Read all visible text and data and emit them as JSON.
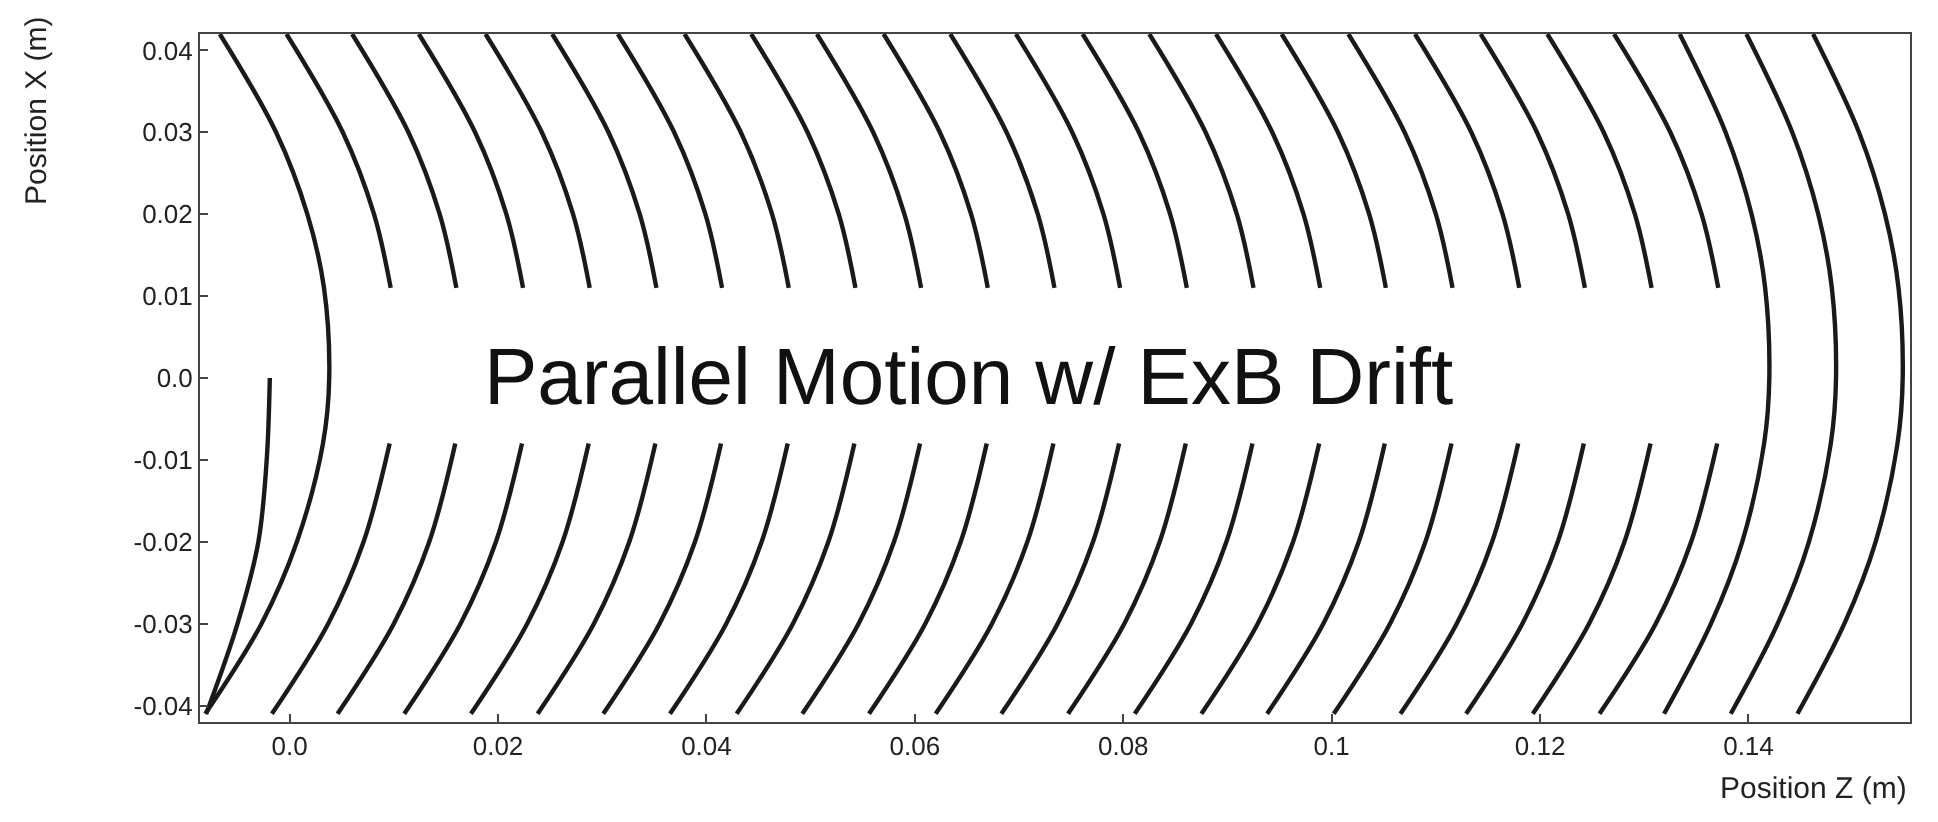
{
  "chart_data": {
    "type": "line",
    "xlabel": "Position Z (m)",
    "ylabel": "Position X (m)",
    "annotations": [
      "Parallel Motion w/ ExB Drift"
    ],
    "xlim": [
      -0.0086,
      0.1555
    ],
    "ylim": [
      -0.042,
      0.042
    ],
    "xticks": [
      {
        "value": 0,
        "label": "0.0"
      },
      0.02,
      0.04,
      0.06,
      0.08,
      {
        "value": 0.1,
        "label": "0.1"
      },
      0.12,
      0.14
    ],
    "yticks": [
      -0.04,
      -0.03,
      -0.02,
      -0.01,
      {
        "value": 0,
        "label": "0.0"
      },
      0.01,
      0.02,
      0.03,
      0.04
    ],
    "marker": "none",
    "line_style": "solid",
    "series": [
      {
        "color": "#1a1a1a",
        "x": [
          -0.0067,
          -0.0013,
          0.0017,
          0.0033,
          0.0038,
          0.0032,
          0.0007,
          -0.0027,
          -0.0081
        ],
        "values": [
          0.042,
          0.03,
          0.02,
          0.011,
          0,
          -0.008,
          -0.02,
          -0.03,
          -0.041
        ]
      },
      {
        "color": "#1a1a1a",
        "x": [
          -0.0019,
          -0.0022,
          -0.003,
          -0.005,
          -0.008
        ],
        "values": [
          0,
          -0.01,
          -0.02,
          -0.03,
          -0.041
        ]
      },
      {
        "color": "#1a1a1a",
        "x": [
          -0.0003,
          0.0051,
          0.0081,
          0.0097,
          null,
          0.0096,
          0.0071,
          0.0037,
          -0.0017
        ],
        "values": [
          0.042,
          0.03,
          0.02,
          0.011,
          null,
          -0.008,
          -0.02,
          -0.03,
          -0.041
        ]
      },
      {
        "color": "#1a1a1a",
        "x": [
          0.006,
          0.0114,
          0.0144,
          0.016,
          null,
          0.0159,
          0.0134,
          0.01,
          0.0046
        ],
        "values": [
          0.042,
          0.03,
          0.02,
          0.011,
          null,
          -0.008,
          -0.02,
          -0.03,
          -0.041
        ]
      },
      {
        "color": "#1a1a1a",
        "x": [
          0.0124,
          0.0178,
          0.0208,
          0.0224,
          null,
          0.0223,
          0.0198,
          0.0164,
          0.011
        ],
        "values": [
          0.042,
          0.03,
          0.02,
          0.011,
          null,
          -0.008,
          -0.02,
          -0.03,
          -0.041
        ]
      },
      {
        "color": "#1a1a1a",
        "x": [
          0.0188,
          0.0242,
          0.0272,
          0.0288,
          null,
          0.0287,
          0.0262,
          0.0228,
          0.0174
        ],
        "values": [
          0.042,
          0.03,
          0.02,
          0.011,
          null,
          -0.008,
          -0.02,
          -0.03,
          -0.041
        ]
      },
      {
        "color": "#1a1a1a",
        "x": [
          0.0252,
          0.0306,
          0.0336,
          0.0352,
          null,
          0.0351,
          0.0326,
          0.0292,
          0.0238
        ],
        "values": [
          0.042,
          0.03,
          0.02,
          0.011,
          null,
          -0.008,
          -0.02,
          -0.03,
          -0.041
        ]
      },
      {
        "color": "#1a1a1a",
        "x": [
          0.0315,
          0.0369,
          0.0399,
          0.0415,
          null,
          0.0414,
          0.0389,
          0.0355,
          0.0301
        ],
        "values": [
          0.042,
          0.03,
          0.02,
          0.011,
          null,
          -0.008,
          -0.02,
          -0.03,
          -0.041
        ]
      },
      {
        "color": "#1a1a1a",
        "x": [
          0.0379,
          0.0433,
          0.0463,
          0.0479,
          null,
          0.0478,
          0.0453,
          0.0419,
          0.0365
        ],
        "values": [
          0.042,
          0.03,
          0.02,
          0.011,
          null,
          -0.008,
          -0.02,
          -0.03,
          -0.041
        ]
      },
      {
        "color": "#1a1a1a",
        "x": [
          0.0443,
          0.0497,
          0.0527,
          0.0543,
          null,
          0.0542,
          0.0517,
          0.0483,
          0.0429
        ],
        "values": [
          0.042,
          0.03,
          0.02,
          0.011,
          null,
          -0.008,
          -0.02,
          -0.03,
          -0.041
        ]
      },
      {
        "color": "#1a1a1a",
        "x": [
          0.0506,
          0.056,
          0.059,
          0.0606,
          null,
          0.0605,
          0.058,
          0.0546,
          0.0492
        ],
        "values": [
          0.042,
          0.03,
          0.02,
          0.011,
          null,
          -0.008,
          -0.02,
          -0.03,
          -0.041
        ]
      },
      {
        "color": "#1a1a1a",
        "x": [
          0.057,
          0.0624,
          0.0654,
          0.067,
          null,
          0.0669,
          0.0644,
          0.061,
          0.0556
        ],
        "values": [
          0.042,
          0.03,
          0.02,
          0.011,
          null,
          -0.008,
          -0.02,
          -0.03,
          -0.041
        ]
      },
      {
        "color": "#1a1a1a",
        "x": [
          0.0634,
          0.0688,
          0.0718,
          0.0734,
          null,
          0.0733,
          0.0708,
          0.0674,
          0.062
        ],
        "values": [
          0.042,
          0.03,
          0.02,
          0.011,
          null,
          -0.008,
          -0.02,
          -0.03,
          -0.041
        ]
      },
      {
        "color": "#1a1a1a",
        "x": [
          0.0697,
          0.0751,
          0.0781,
          0.0797,
          null,
          0.0796,
          0.0771,
          0.0737,
          0.0683
        ],
        "values": [
          0.042,
          0.03,
          0.02,
          0.011,
          null,
          -0.008,
          -0.02,
          -0.03,
          -0.041
        ]
      },
      {
        "color": "#1a1a1a",
        "x": [
          0.0761,
          0.0815,
          0.0845,
          0.0861,
          null,
          0.086,
          0.0835,
          0.0801,
          0.0747
        ],
        "values": [
          0.042,
          0.03,
          0.02,
          0.011,
          null,
          -0.008,
          -0.02,
          -0.03,
          -0.041
        ]
      },
      {
        "color": "#1a1a1a",
        "x": [
          0.0825,
          0.0879,
          0.0909,
          0.0925,
          null,
          0.0924,
          0.0899,
          0.0865,
          0.0811
        ],
        "values": [
          0.042,
          0.03,
          0.02,
          0.011,
          null,
          -0.008,
          -0.02,
          -0.03,
          -0.041
        ]
      },
      {
        "color": "#1a1a1a",
        "x": [
          0.0889,
          0.0943,
          0.0973,
          0.0989,
          null,
          0.0988,
          0.0963,
          0.0929,
          0.0875
        ],
        "values": [
          0.042,
          0.03,
          0.02,
          0.011,
          null,
          -0.008,
          -0.02,
          -0.03,
          -0.041
        ]
      },
      {
        "color": "#1a1a1a",
        "x": [
          0.0952,
          0.1006,
          0.1036,
          0.1052,
          null,
          0.1051,
          0.1026,
          0.0992,
          0.0938
        ],
        "values": [
          0.042,
          0.03,
          0.02,
          0.011,
          null,
          -0.008,
          -0.02,
          -0.03,
          -0.041
        ]
      },
      {
        "color": "#1a1a1a",
        "x": [
          0.1016,
          0.107,
          0.11,
          0.1116,
          null,
          0.1115,
          0.109,
          0.1056,
          0.1002
        ],
        "values": [
          0.042,
          0.03,
          0.02,
          0.011,
          null,
          -0.008,
          -0.02,
          -0.03,
          -0.041
        ]
      },
      {
        "color": "#1a1a1a",
        "x": [
          0.108,
          0.1134,
          0.1164,
          0.118,
          null,
          0.1179,
          0.1154,
          0.112,
          0.1066
        ],
        "values": [
          0.042,
          0.03,
          0.02,
          0.011,
          null,
          -0.008,
          -0.02,
          -0.03,
          -0.041
        ]
      },
      {
        "color": "#1a1a1a",
        "x": [
          0.1143,
          0.1197,
          0.1227,
          0.1243,
          null,
          0.1242,
          0.1217,
          0.1183,
          0.1129
        ],
        "values": [
          0.042,
          0.03,
          0.02,
          0.011,
          null,
          -0.008,
          -0.02,
          -0.03,
          -0.041
        ]
      },
      {
        "color": "#1a1a1a",
        "x": [
          0.1207,
          0.1261,
          0.1291,
          0.1307,
          null,
          0.1306,
          0.1281,
          0.1247,
          0.1193
        ],
        "values": [
          0.042,
          0.03,
          0.02,
          0.011,
          null,
          -0.008,
          -0.02,
          -0.03,
          -0.041
        ]
      },
      {
        "color": "#1a1a1a",
        "x": [
          0.1271,
          0.1325,
          0.1355,
          0.1371,
          null,
          0.137,
          0.1345,
          0.1311,
          0.1257
        ],
        "values": [
          0.042,
          0.03,
          0.02,
          0.011,
          null,
          -0.008,
          -0.02,
          -0.03,
          -0.041
        ]
      },
      {
        "color": "#1a1a1a",
        "x": [
          0.1334,
          0.1378,
          0.1403,
          0.1416,
          0.142,
          0.1415,
          0.1394,
          0.1364,
          0.1319
        ],
        "values": [
          0.042,
          0.03,
          0.02,
          0.011,
          0,
          -0.008,
          -0.02,
          -0.03,
          -0.041
        ]
      },
      {
        "color": "#1a1a1a",
        "x": [
          0.1398,
          0.1442,
          0.1467,
          0.148,
          0.1484,
          0.1479,
          0.1458,
          0.1428,
          0.1383
        ],
        "values": [
          0.042,
          0.03,
          0.02,
          0.011,
          0,
          -0.008,
          -0.02,
          -0.03,
          -0.041
        ]
      },
      {
        "color": "#1a1a1a",
        "x": [
          0.1462,
          0.1506,
          0.1531,
          0.1544,
          0.1548,
          0.1543,
          0.1522,
          0.1492,
          0.1447
        ],
        "values": [
          0.042,
          0.03,
          0.02,
          0.011,
          0,
          -0.008,
          -0.02,
          -0.03,
          -0.041
        ]
      }
    ]
  }
}
